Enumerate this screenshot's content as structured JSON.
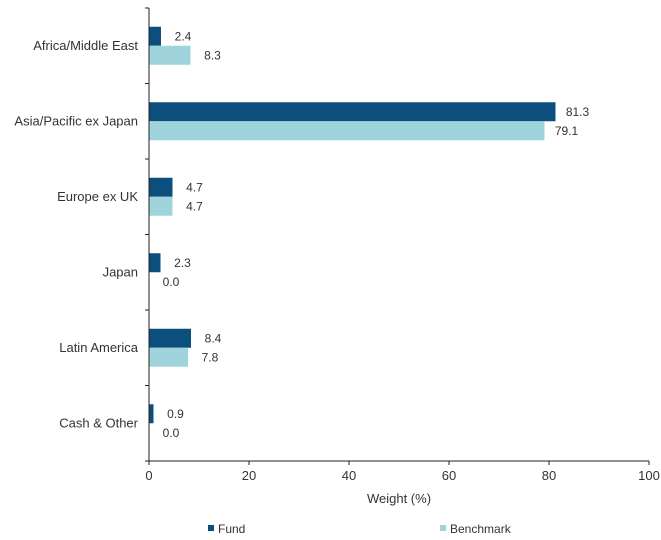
{
  "chart_data": {
    "type": "bar",
    "orientation": "horizontal",
    "categories": [
      "Africa/Middle East",
      "Asia/Pacific ex Japan",
      "Europe ex UK",
      "Japan",
      "Latin America",
      "Cash & Other"
    ],
    "series": [
      {
        "name": "Fund",
        "values": [
          2.4,
          81.3,
          4.7,
          2.3,
          8.4,
          0.9
        ],
        "labels": [
          "2.4",
          "81.3",
          "4.7",
          "2.3",
          "8.4",
          "0.9"
        ],
        "color": "#0c4f7c"
      },
      {
        "name": "Benchmark",
        "values": [
          8.3,
          79.1,
          4.7,
          0.0,
          7.8,
          0.0
        ],
        "labels": [
          "8.3",
          "79.1",
          "4.7",
          "0.0",
          "7.8",
          "0.0"
        ],
        "color": "#a0d4dc"
      }
    ],
    "xlabel": "Weight (%)",
    "xlim": [
      0,
      100
    ],
    "xticks": [
      0,
      20,
      40,
      60,
      80,
      100
    ],
    "xtick_labels": [
      "0",
      "20",
      "40",
      "60",
      "80",
      "100"
    ],
    "grid": false,
    "legend_position": "bottom"
  }
}
